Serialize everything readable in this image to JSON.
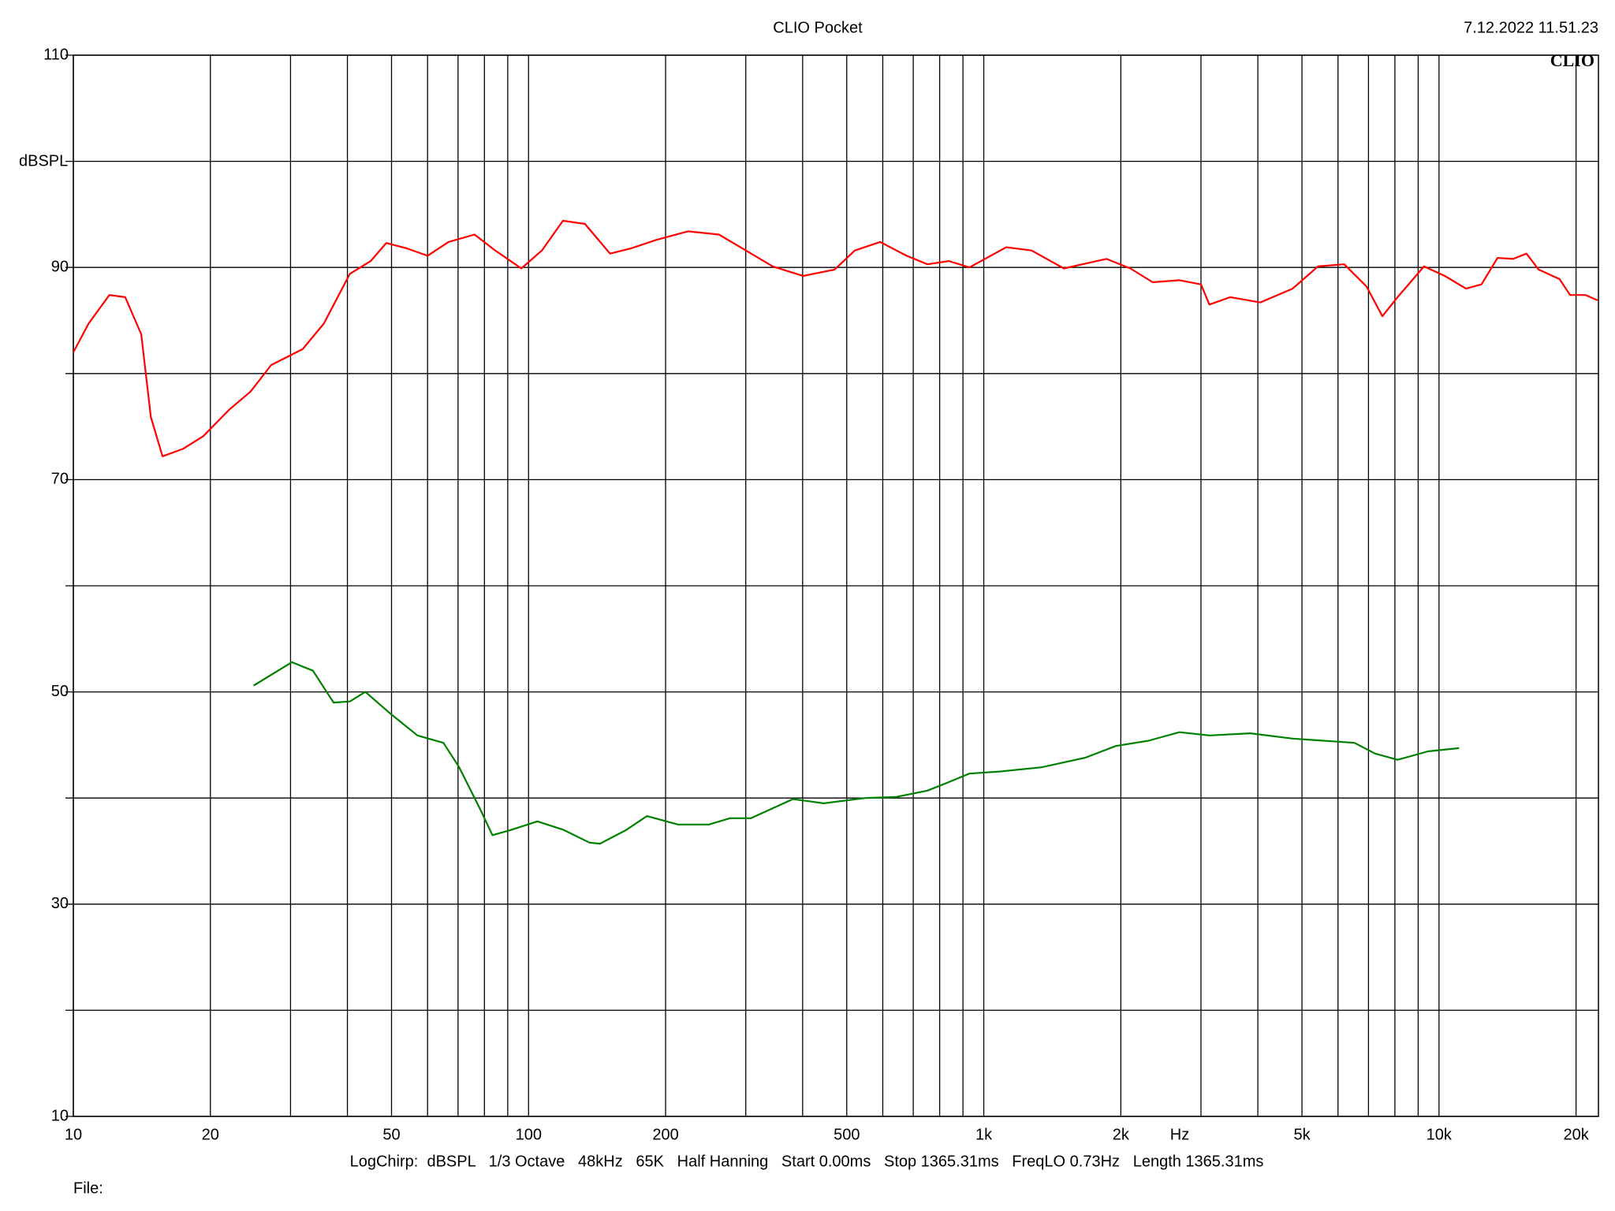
{
  "chart_data": {
    "type": "line",
    "title": "CLIO Pocket",
    "timestamp": "7.12.2022 11.51.23",
    "logo": "CLIO",
    "ylabel": "dBSPL",
    "xlabel": "Hz",
    "footer": "LogChirp:  dBSPL   1/3 Octave   48kHz   65K   Half Hanning   Start 0.00ms   Stop 1365.31ms   FreqLO 0.73Hz   Length 1365.31ms",
    "file_label": "File:",
    "log_x": true,
    "grid": true,
    "xlim": [
      10,
      22400
    ],
    "ylim": [
      10,
      110
    ],
    "xticks": [
      10,
      20,
      50,
      100,
      200,
      500,
      {
        "value": 1000,
        "label": "1k"
      },
      {
        "value": 2000,
        "label": "2k"
      },
      {
        "value": 5000,
        "label": "5k"
      },
      {
        "value": 10000,
        "label": "10k"
      },
      {
        "value": 20000,
        "label": "20k"
      }
    ],
    "xminorticks": [
      30,
      40,
      60,
      70,
      80,
      90,
      300,
      400,
      600,
      700,
      800,
      900,
      3000,
      4000,
      6000,
      7000,
      8000,
      9000
    ],
    "yticks": [
      10,
      30,
      50,
      70,
      90,
      110
    ],
    "yminorticks": [
      20,
      40,
      60,
      80,
      100
    ],
    "series": [
      {
        "color": "#ff0000",
        "x": [
          10,
          10.8,
          12.0,
          13.0,
          14.1,
          14.8,
          15.7,
          17.4,
          19.3,
          22.0,
          24.5,
          27.2,
          31.9,
          35.5,
          40.5,
          45.0,
          48.7,
          54.0,
          60.0,
          66.7,
          76.1,
          84.5,
          96.4,
          107,
          119,
          133,
          151,
          168,
          191,
          224,
          262,
          292,
          344,
          401,
          470,
          521,
          592,
          677,
          752,
          838,
          930,
          1120,
          1273,
          1500,
          1860,
          2100,
          2350,
          2690,
          3000,
          3130,
          3480,
          4050,
          4770,
          5420,
          6190,
          6930,
          7510,
          8110,
          9270,
          10300,
          11460,
          12400,
          13450,
          14540,
          15570,
          16550,
          18400,
          19400,
          21000,
          22300
        ],
        "values": [
          82.0,
          84.7,
          87.4,
          87.2,
          83.7,
          75.9,
          72.2,
          72.9,
          74.1,
          76.6,
          78.3,
          80.8,
          82.3,
          84.7,
          89.4,
          90.6,
          92.3,
          91.8,
          91.1,
          92.4,
          93.1,
          91.6,
          89.9,
          91.6,
          94.4,
          94.1,
          91.3,
          91.8,
          92.6,
          93.4,
          93.1,
          91.9,
          90.1,
          89.2,
          89.8,
          91.6,
          92.4,
          91.1,
          90.3,
          90.6,
          90.0,
          91.9,
          91.6,
          89.9,
          90.8,
          89.9,
          88.6,
          88.8,
          88.4,
          86.5,
          87.2,
          86.7,
          88.0,
          90.1,
          90.3,
          88.2,
          85.4,
          87.2,
          90.1,
          89.2,
          88.0,
          88.4,
          90.9,
          90.8,
          91.3,
          89.8,
          88.9,
          87.4,
          87.4,
          86.9
        ]
      },
      {
        "color": "#008000",
        "x": [
          24.9,
          30.2,
          33.6,
          37.3,
          40.5,
          43.8,
          49.9,
          57.0,
          65.0,
          70.4,
          78.2,
          83.3,
          91.6,
          104.6,
          119.4,
          136,
          143.5,
          164,
          182,
          213,
          249,
          277,
          308,
          381,
          445,
          549,
          641,
          752,
          838,
          930,
          1090,
          1340,
          1670,
          1950,
          2300,
          2690,
          3130,
          3850,
          4770,
          5580,
          6520,
          7230,
          8110,
          9460,
          11070
        ],
        "values": [
          50.6,
          52.8,
          52.0,
          49.0,
          49.1,
          50.0,
          47.9,
          45.9,
          45.2,
          42.9,
          39.0,
          36.5,
          37.0,
          37.8,
          37.0,
          35.8,
          35.7,
          37.0,
          38.3,
          37.5,
          37.5,
          38.1,
          38.1,
          39.9,
          39.5,
          40.0,
          40.1,
          40.7,
          41.5,
          42.3,
          42.5,
          42.9,
          43.8,
          44.9,
          45.4,
          46.2,
          45.9,
          46.1,
          45.6,
          45.4,
          45.2,
          44.2,
          43.6,
          44.4,
          44.7
        ]
      }
    ]
  }
}
